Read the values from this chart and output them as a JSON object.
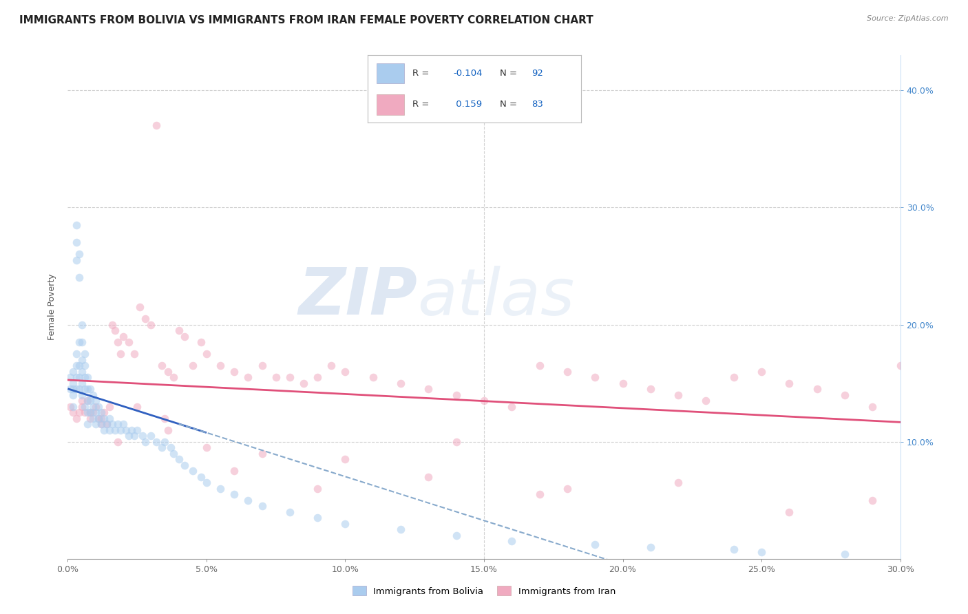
{
  "title": "IMMIGRANTS FROM BOLIVIA VS IMMIGRANTS FROM IRAN FEMALE POVERTY CORRELATION CHART",
  "source": "Source: ZipAtlas.com",
  "ylabel": "Female Poverty",
  "xlim": [
    0.0,
    0.3
  ],
  "ylim": [
    0.0,
    0.42
  ],
  "bolivia_color": "#aaccee",
  "iran_color": "#f0aac0",
  "bolivia_line_color": "#3060c0",
  "iran_line_color": "#e0507a",
  "dashed_line_color": "#88aacc",
  "bolivia_R": -0.104,
  "bolivia_N": 92,
  "iran_R": 0.159,
  "iran_N": 83,
  "watermark_zip": "ZIP",
  "watermark_atlas": "atlas",
  "background_color": "#ffffff",
  "grid_color": "#cccccc",
  "title_fontsize": 11,
  "axis_label_fontsize": 9,
  "tick_fontsize": 9,
  "scatter_size": 70,
  "scatter_alpha": 0.55,
  "legend_R_color": "#1060c0",
  "legend_N_color": "#1060c0",
  "bolivia_x": [
    0.001,
    0.001,
    0.002,
    0.002,
    0.002,
    0.002,
    0.002,
    0.003,
    0.003,
    0.003,
    0.003,
    0.003,
    0.003,
    0.003,
    0.004,
    0.004,
    0.004,
    0.004,
    0.004,
    0.004,
    0.005,
    0.005,
    0.005,
    0.005,
    0.005,
    0.005,
    0.006,
    0.006,
    0.006,
    0.006,
    0.006,
    0.007,
    0.007,
    0.007,
    0.007,
    0.007,
    0.008,
    0.008,
    0.008,
    0.009,
    0.009,
    0.009,
    0.01,
    0.01,
    0.01,
    0.011,
    0.011,
    0.012,
    0.012,
    0.013,
    0.013,
    0.014,
    0.015,
    0.015,
    0.016,
    0.017,
    0.018,
    0.019,
    0.02,
    0.021,
    0.022,
    0.023,
    0.024,
    0.025,
    0.027,
    0.028,
    0.03,
    0.032,
    0.034,
    0.035,
    0.037,
    0.038,
    0.04,
    0.042,
    0.045,
    0.048,
    0.05,
    0.055,
    0.06,
    0.065,
    0.07,
    0.08,
    0.09,
    0.1,
    0.12,
    0.14,
    0.16,
    0.19,
    0.21,
    0.24,
    0.25,
    0.28
  ],
  "bolivia_y": [
    0.145,
    0.155,
    0.13,
    0.145,
    0.15,
    0.16,
    0.14,
    0.27,
    0.285,
    0.255,
    0.165,
    0.175,
    0.145,
    0.155,
    0.24,
    0.26,
    0.185,
    0.165,
    0.155,
    0.145,
    0.2,
    0.185,
    0.17,
    0.16,
    0.15,
    0.14,
    0.175,
    0.165,
    0.155,
    0.145,
    0.13,
    0.155,
    0.145,
    0.135,
    0.125,
    0.115,
    0.145,
    0.135,
    0.125,
    0.14,
    0.13,
    0.12,
    0.135,
    0.125,
    0.115,
    0.13,
    0.12,
    0.125,
    0.115,
    0.12,
    0.11,
    0.115,
    0.12,
    0.11,
    0.115,
    0.11,
    0.115,
    0.11,
    0.115,
    0.11,
    0.105,
    0.11,
    0.105,
    0.11,
    0.105,
    0.1,
    0.105,
    0.1,
    0.095,
    0.1,
    0.095,
    0.09,
    0.085,
    0.08,
    0.075,
    0.07,
    0.065,
    0.06,
    0.055,
    0.05,
    0.045,
    0.04,
    0.035,
    0.03,
    0.025,
    0.02,
    0.015,
    0.012,
    0.01,
    0.008,
    0.006,
    0.004
  ],
  "iran_x": [
    0.001,
    0.002,
    0.003,
    0.004,
    0.005,
    0.006,
    0.007,
    0.008,
    0.009,
    0.01,
    0.011,
    0.012,
    0.013,
    0.014,
    0.015,
    0.016,
    0.017,
    0.018,
    0.019,
    0.02,
    0.022,
    0.024,
    0.026,
    0.028,
    0.03,
    0.032,
    0.034,
    0.036,
    0.038,
    0.04,
    0.042,
    0.045,
    0.048,
    0.05,
    0.055,
    0.06,
    0.065,
    0.07,
    0.075,
    0.08,
    0.085,
    0.09,
    0.095,
    0.1,
    0.11,
    0.12,
    0.13,
    0.14,
    0.15,
    0.16,
    0.17,
    0.18,
    0.19,
    0.2,
    0.21,
    0.22,
    0.23,
    0.24,
    0.25,
    0.26,
    0.27,
    0.28,
    0.29,
    0.3,
    0.005,
    0.008,
    0.012,
    0.018,
    0.025,
    0.035,
    0.05,
    0.07,
    0.1,
    0.14,
    0.18,
    0.22,
    0.26,
    0.29,
    0.036,
    0.06,
    0.09,
    0.13,
    0.17
  ],
  "iran_y": [
    0.13,
    0.125,
    0.12,
    0.125,
    0.13,
    0.125,
    0.135,
    0.12,
    0.125,
    0.13,
    0.12,
    0.115,
    0.125,
    0.115,
    0.13,
    0.2,
    0.195,
    0.185,
    0.175,
    0.19,
    0.185,
    0.175,
    0.215,
    0.205,
    0.2,
    0.37,
    0.165,
    0.16,
    0.155,
    0.195,
    0.19,
    0.165,
    0.185,
    0.175,
    0.165,
    0.16,
    0.155,
    0.165,
    0.155,
    0.155,
    0.15,
    0.155,
    0.165,
    0.16,
    0.155,
    0.15,
    0.145,
    0.14,
    0.135,
    0.13,
    0.165,
    0.16,
    0.155,
    0.15,
    0.145,
    0.14,
    0.135,
    0.155,
    0.16,
    0.15,
    0.145,
    0.14,
    0.13,
    0.165,
    0.135,
    0.125,
    0.12,
    0.1,
    0.13,
    0.12,
    0.095,
    0.09,
    0.085,
    0.1,
    0.06,
    0.065,
    0.04,
    0.05,
    0.11,
    0.075,
    0.06,
    0.07,
    0.055
  ]
}
